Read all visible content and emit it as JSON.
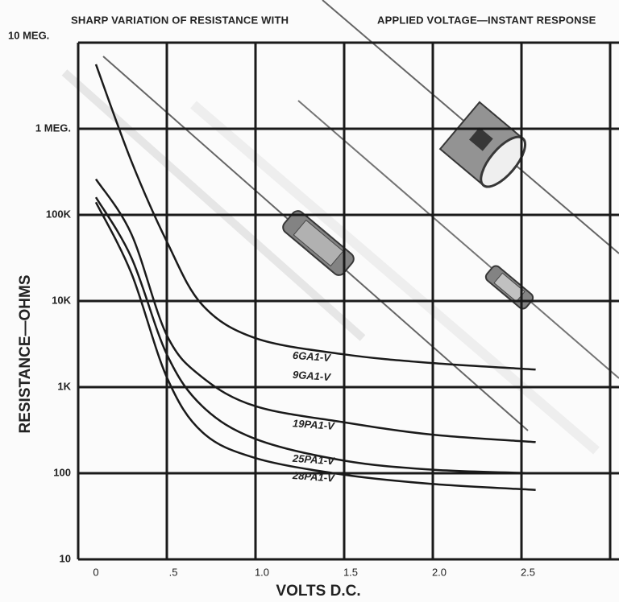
{
  "chart_data": {
    "type": "line",
    "title": "SHARP VARIATION OF RESISTANCE WITH",
    "subtitle": "APPLIED VOLTAGE—INSTANT RESPONSE",
    "x_label": "VOLTS D.C.",
    "y_label": "RESISTANCE—OHMS",
    "x": [
      0.1,
      0.3,
      0.5,
      0.7,
      1.0,
      1.5,
      2.0,
      2.58
    ],
    "series": [
      {
        "labels": [
          "6GA1-V",
          "9GA1-V"
        ],
        "color": "#1a1a1a",
        "values": [
          5600000,
          420000,
          49000,
          9000,
          3700,
          2400,
          1900,
          1600
        ]
      },
      {
        "labels": [
          "19PA1-V"
        ],
        "color": "#1a1a1a",
        "values": [
          260000,
          60000,
          4000,
          1300,
          600,
          390,
          280,
          230
        ]
      },
      {
        "labels": [
          "25PA1-V"
        ],
        "color": "#1a1a1a",
        "values": [
          160000,
          32000,
          2400,
          600,
          250,
          140,
          110,
          100
        ]
      },
      {
        "labels": [
          "28PA1-V"
        ],
        "color": "#1a1a1a",
        "values": [
          140000,
          21000,
          1300,
          300,
          150,
          96,
          75,
          64
        ]
      }
    ],
    "xlim": [
      0,
      3
    ],
    "xticks": [
      0,
      {
        "value": 0.5,
        "label": ".5"
      },
      {
        "value": 1,
        "label": "1.0"
      },
      {
        "value": 1.5,
        "label": "1.5"
      },
      {
        "value": 2,
        "label": "2.0"
      },
      2.5
    ],
    "ylim": [
      10,
      10000000
    ],
    "log_y": true,
    "yticks": [
      {
        "value": 10000000,
        "label": "10 MEG."
      },
      {
        "value": 1000000,
        "label": "1 MEG."
      },
      {
        "value": 100000,
        "label": "100K"
      },
      {
        "value": 10000,
        "label": "10K"
      },
      {
        "value": 1000,
        "label": "1K"
      },
      100,
      10
    ],
    "grid": true
  }
}
